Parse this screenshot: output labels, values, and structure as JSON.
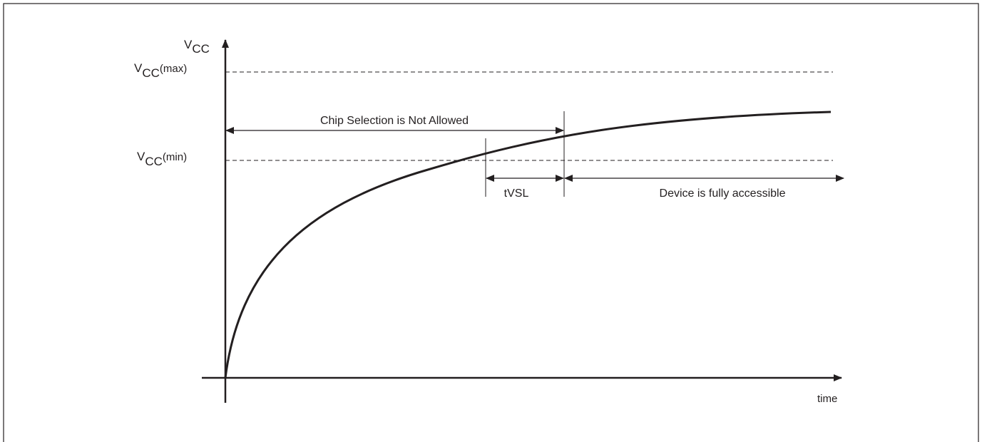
{
  "diagram": {
    "axes": {
      "y_label_main": "V",
      "y_label_sub": "CC",
      "x_label": "time"
    },
    "levels": {
      "vcc_max": {
        "main": "V",
        "sub": "CC",
        "suffix": "(max)"
      },
      "vcc_min": {
        "main": "V",
        "sub": "CC",
        "suffix": "(min)"
      }
    },
    "annotations": {
      "chip_selection": "Chip Selection is Not Allowed",
      "tvsl": "tVSL",
      "device_access": "Device is fully accessible"
    },
    "colors": {
      "line": "#231f20",
      "border": "#231f20",
      "background": "#ffffff"
    }
  }
}
